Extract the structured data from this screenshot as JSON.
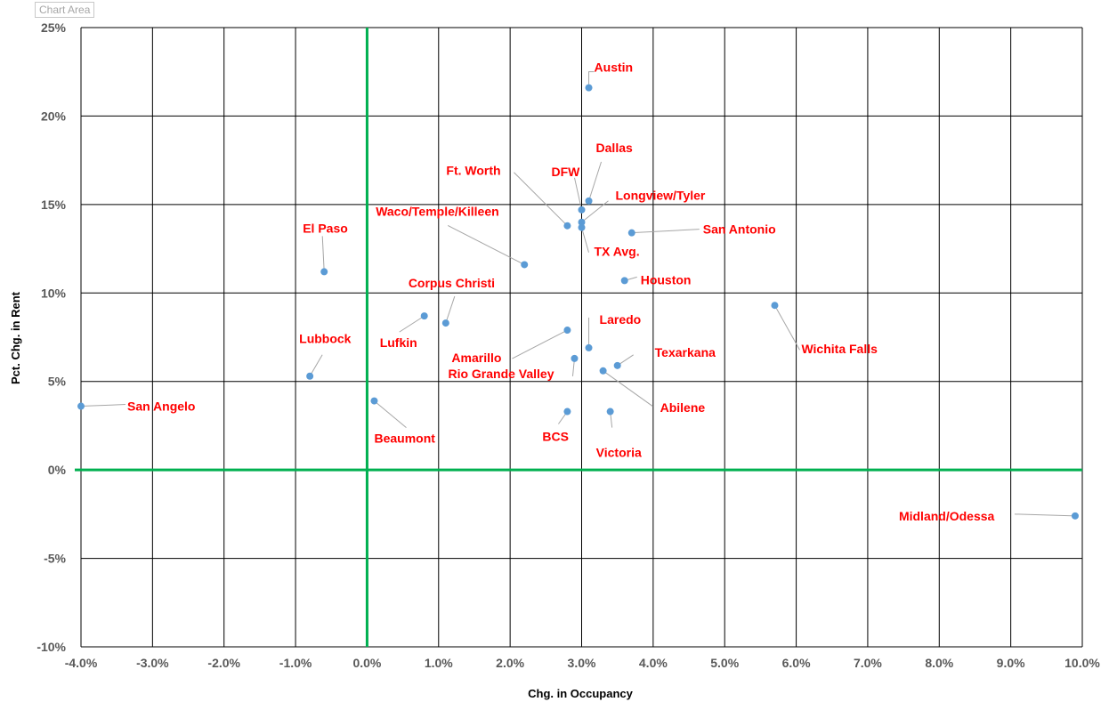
{
  "chart_area_label": "Chart Area",
  "colors": {
    "point": "#5b9bd5",
    "label": "#ff0000",
    "zero_line": "#00b050",
    "grid": "#000000",
    "leader": "#a6a6a6"
  },
  "chart_data": {
    "type": "scatter",
    "title": "",
    "xlabel": "Chg. in Occupancy",
    "ylabel": "Pct. Chg. in Rent",
    "xlim": [
      -4.0,
      10.0
    ],
    "ylim": [
      -10,
      25
    ],
    "x_ticks": [
      "-4.0%",
      "-3.0%",
      "-2.0%",
      "-1.0%",
      "0.0%",
      "1.0%",
      "2.0%",
      "3.0%",
      "4.0%",
      "5.0%",
      "6.0%",
      "7.0%",
      "8.0%",
      "9.0%",
      "10.0%"
    ],
    "y_ticks": [
      "25%",
      "20%",
      "15%",
      "10%",
      "5%",
      "0%",
      "-5%",
      "-10%"
    ],
    "grid": true,
    "legend": "none",
    "points": [
      {
        "label": "Austin",
        "x": 3.1,
        "y": 21.6
      },
      {
        "label": "Dallas",
        "x": 3.1,
        "y": 15.2
      },
      {
        "label": "DFW",
        "x": 3.0,
        "y": 14.7
      },
      {
        "label": "Longview/Tyler",
        "x": 3.0,
        "y": 14.0
      },
      {
        "label": "Ft. Worth",
        "x": 2.8,
        "y": 13.8
      },
      {
        "label": "TX Avg.",
        "x": 3.0,
        "y": 13.7
      },
      {
        "label": "San Antonio",
        "x": 3.7,
        "y": 13.4
      },
      {
        "label": "Waco/Temple/Killeen",
        "x": 2.2,
        "y": 11.6
      },
      {
        "label": "El Paso",
        "x": -0.6,
        "y": 11.2
      },
      {
        "label": "Houston",
        "x": 3.6,
        "y": 10.7
      },
      {
        "label": "Wichita Falls",
        "x": 5.7,
        "y": 9.3
      },
      {
        "label": "Lufkin",
        "x": 0.8,
        "y": 8.7
      },
      {
        "label": "Corpus Christi",
        "x": 1.1,
        "y": 8.3
      },
      {
        "label": "Amarillo",
        "x": 2.8,
        "y": 7.9
      },
      {
        "label": "Laredo",
        "x": 3.1,
        "y": 6.9
      },
      {
        "label": "Rio Grande Valley",
        "x": 2.9,
        "y": 6.3
      },
      {
        "label": "Texarkana",
        "x": 3.5,
        "y": 5.9
      },
      {
        "label": "Abilene",
        "x": 3.3,
        "y": 5.6
      },
      {
        "label": "Lubbock",
        "x": -0.8,
        "y": 5.3
      },
      {
        "label": "Beaumont",
        "x": 0.1,
        "y": 3.9
      },
      {
        "label": "San Angelo",
        "x": -4.0,
        "y": 3.6
      },
      {
        "label": "BCS",
        "x": 2.8,
        "y": 3.3
      },
      {
        "label": "Victoria",
        "x": 3.4,
        "y": 3.3
      },
      {
        "label": "Midland/Odessa",
        "x": 9.9,
        "y": -2.6
      }
    ]
  }
}
